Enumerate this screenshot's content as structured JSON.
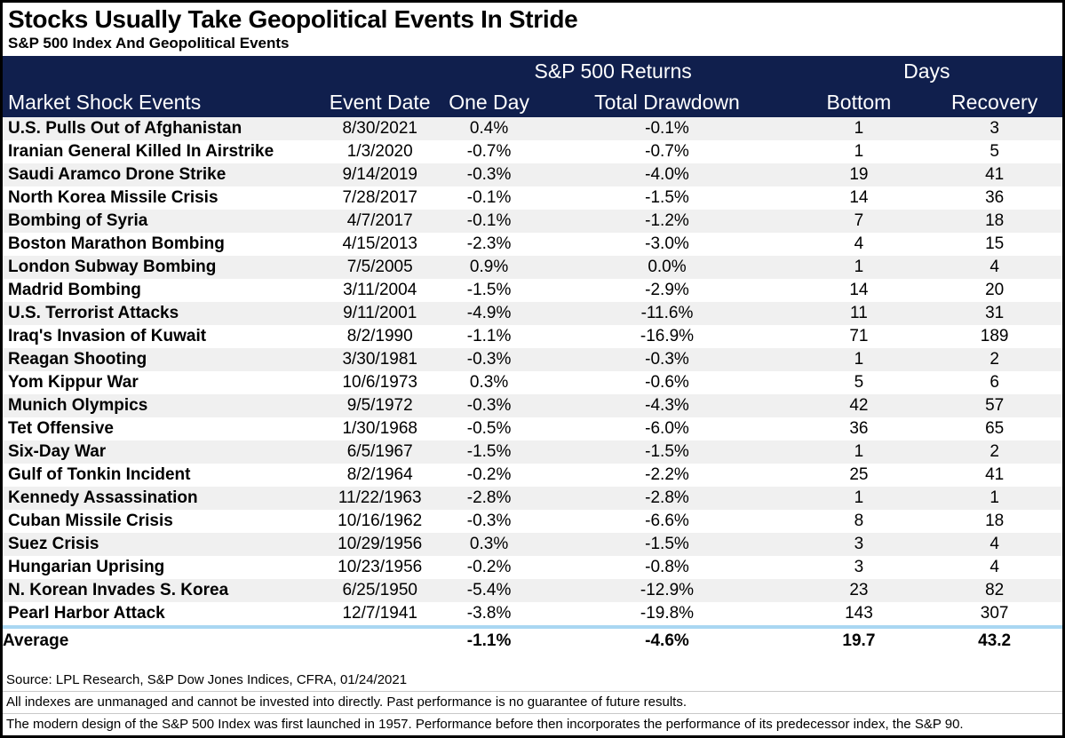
{
  "title": "Stocks Usually Take Geopolitical Events In Stride",
  "subtitle": "S&P 500 Index And Geopolitical Events",
  "colors": {
    "header_navy": "#101F4D",
    "row_stripe": "#F0F0F0",
    "average_divider_blue": "#A9D7F2",
    "border_black": "#000000"
  },
  "chart_data": {
    "type": "table",
    "title": "Stocks Usually Take Geopolitical Events In Stride",
    "subtitle": "S&P 500 Index And Geopolitical Events",
    "column_groups": [
      {
        "label": "S&P 500 Returns",
        "spans": [
          "One Day",
          "Total Drawdown"
        ]
      },
      {
        "label": "Days",
        "spans": [
          "Bottom",
          "Recovery"
        ]
      }
    ],
    "columns": [
      "Market Shock Events",
      "Event Date",
      "One Day",
      "Total Drawdown",
      "Bottom",
      "Recovery"
    ],
    "rows": [
      [
        "U.S. Pulls Out of Afghanistan",
        "8/30/2021",
        "0.4%",
        "-0.1%",
        "1",
        "3"
      ],
      [
        "Iranian General Killed In Airstrike",
        "1/3/2020",
        "-0.7%",
        "-0.7%",
        "1",
        "5"
      ],
      [
        "Saudi Aramco Drone Strike",
        "9/14/2019",
        "-0.3%",
        "-4.0%",
        "19",
        "41"
      ],
      [
        "North Korea Missile Crisis",
        "7/28/2017",
        "-0.1%",
        "-1.5%",
        "14",
        "36"
      ],
      [
        "Bombing of Syria",
        "4/7/2017",
        "-0.1%",
        "-1.2%",
        "7",
        "18"
      ],
      [
        "Boston Marathon Bombing",
        "4/15/2013",
        "-2.3%",
        "-3.0%",
        "4",
        "15"
      ],
      [
        "London Subway Bombing",
        "7/5/2005",
        "0.9%",
        "0.0%",
        "1",
        "4"
      ],
      [
        "Madrid Bombing",
        "3/11/2004",
        "-1.5%",
        "-2.9%",
        "14",
        "20"
      ],
      [
        "U.S. Terrorist Attacks",
        "9/11/2001",
        "-4.9%",
        "-11.6%",
        "11",
        "31"
      ],
      [
        "Iraq's Invasion of Kuwait",
        "8/2/1990",
        "-1.1%",
        "-16.9%",
        "71",
        "189"
      ],
      [
        "Reagan Shooting",
        "3/30/1981",
        "-0.3%",
        "-0.3%",
        "1",
        "2"
      ],
      [
        "Yom Kippur War",
        "10/6/1973",
        "0.3%",
        "-0.6%",
        "5",
        "6"
      ],
      [
        "Munich Olympics",
        "9/5/1972",
        "-0.3%",
        "-4.3%",
        "42",
        "57"
      ],
      [
        "Tet Offensive",
        "1/30/1968",
        "-0.5%",
        "-6.0%",
        "36",
        "65"
      ],
      [
        "Six-Day War",
        "6/5/1967",
        "-1.5%",
        "-1.5%",
        "1",
        "2"
      ],
      [
        "Gulf of Tonkin Incident",
        "8/2/1964",
        "-0.2%",
        "-2.2%",
        "25",
        "41"
      ],
      [
        "Kennedy Assassination",
        "11/22/1963",
        "-2.8%",
        "-2.8%",
        "1",
        "1"
      ],
      [
        "Cuban Missile Crisis",
        "10/16/1962",
        "-0.3%",
        "-6.6%",
        "8",
        "18"
      ],
      [
        "Suez Crisis",
        "10/29/1956",
        "0.3%",
        "-1.5%",
        "3",
        "4"
      ],
      [
        "Hungarian Uprising",
        "10/23/1956",
        "-0.2%",
        "-0.8%",
        "3",
        "4"
      ],
      [
        "N. Korean Invades S. Korea",
        "6/25/1950",
        "-5.4%",
        "-12.9%",
        "23",
        "82"
      ],
      [
        "Pearl Harbor Attack",
        "12/7/1941",
        "-3.8%",
        "-19.8%",
        "143",
        "307"
      ]
    ],
    "average_row": [
      "Average",
      "",
      "-1.1%",
      "-4.6%",
      "19.7",
      "43.2"
    ]
  },
  "footnotes": [
    "Source: LPL Research, S&P Dow Jones Indices, CFRA, 01/24/2021",
    "All indexes are unmanaged and cannot be invested into directly.  Past performance is no guarantee of future results.",
    "The modern design of the S&P 500 Index was first launched in 1957. Performance before then incorporates the performance of its predecessor index, the S&P 90."
  ]
}
